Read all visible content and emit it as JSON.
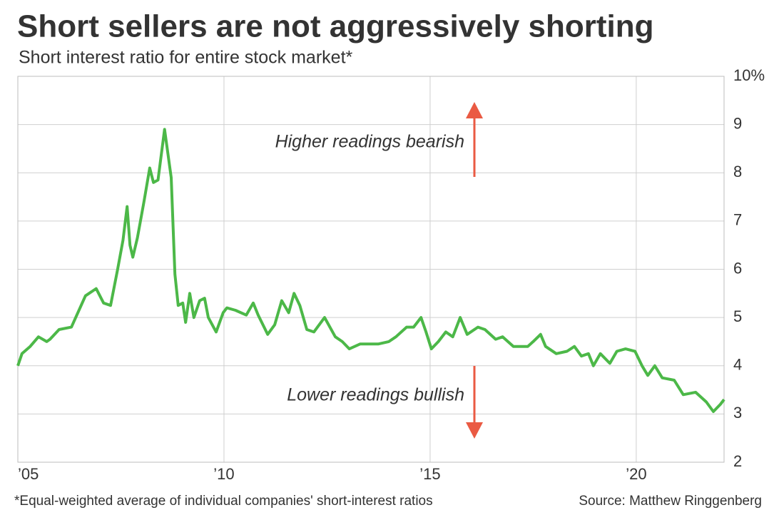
{
  "chart_data": {
    "type": "line",
    "title": "Short sellers are not aggressively shorting",
    "subtitle": "Short interest ratio for entire stock market*",
    "footnote": "*Equal-weighted average of individual companies' short-interest ratios",
    "source": "Source: Matthew Ringgenberg",
    "annotations": [
      "Higher readings bearish",
      "Lower readings bullish"
    ],
    "annotation_color": "#ea5a43",
    "grid": true,
    "xlim": [
      2005,
      2022.13
    ],
    "xticks": [
      {
        "value": 2005,
        "label": "’05"
      },
      {
        "value": 2010,
        "label": "’10"
      },
      {
        "value": 2015,
        "label": "’15"
      },
      {
        "value": 2020,
        "label": "’20"
      }
    ],
    "ylim": [
      2,
      10
    ],
    "yticks": [
      2,
      3,
      4,
      5,
      6,
      7,
      8,
      9,
      {
        "value": 10,
        "label": "10%"
      }
    ],
    "series": [
      {
        "color": "#4cb848",
        "x": [
          2005.0,
          2005.1,
          2005.3,
          2005.5,
          2005.7,
          2005.78,
          2006.0,
          2006.3,
          2006.64,
          2006.9,
          2007.08,
          2007.25,
          2007.42,
          2007.55,
          2007.65,
          2007.72,
          2007.79,
          2007.9,
          2008.06,
          2008.2,
          2008.29,
          2008.4,
          2008.56,
          2008.72,
          2008.81,
          2008.89,
          2009.0,
          2009.07,
          2009.17,
          2009.27,
          2009.41,
          2009.53,
          2009.62,
          2009.81,
          2009.98,
          2010.07,
          2010.28,
          2010.54,
          2010.71,
          2010.83,
          2011.06,
          2011.23,
          2011.4,
          2011.57,
          2011.7,
          2011.84,
          2012.01,
          2012.18,
          2012.44,
          2012.7,
          2012.87,
          2013.04,
          2013.3,
          2013.56,
          2013.74,
          2014.0,
          2014.17,
          2014.43,
          2014.6,
          2014.78,
          2014.9,
          2015.03,
          2015.2,
          2015.38,
          2015.55,
          2015.73,
          2015.9,
          2016.16,
          2016.33,
          2016.59,
          2016.76,
          2017.02,
          2017.37,
          2017.5,
          2017.68,
          2017.8,
          2018.06,
          2018.32,
          2018.5,
          2018.67,
          2018.84,
          2018.96,
          2019.13,
          2019.36,
          2019.53,
          2019.74,
          2019.97,
          2020.14,
          2020.28,
          2020.45,
          2020.63,
          2020.92,
          2021.14,
          2021.44,
          2021.7,
          2021.87,
          2022.04,
          2022.13
        ],
        "values": [
          4.0,
          4.25,
          4.4,
          4.6,
          4.5,
          4.55,
          4.75,
          4.8,
          5.45,
          5.6,
          5.3,
          5.25,
          6.0,
          6.6,
          7.3,
          6.5,
          6.25,
          6.65,
          7.4,
          8.1,
          7.8,
          7.85,
          8.9,
          7.9,
          5.9,
          5.25,
          5.3,
          4.9,
          5.5,
          5.0,
          5.35,
          5.4,
          5.0,
          4.7,
          5.1,
          5.2,
          5.15,
          5.05,
          5.3,
          5.05,
          4.65,
          4.85,
          5.35,
          5.1,
          5.5,
          5.25,
          4.75,
          4.7,
          5.0,
          4.6,
          4.5,
          4.35,
          4.45,
          4.45,
          4.45,
          4.5,
          4.6,
          4.8,
          4.8,
          5.0,
          4.7,
          4.35,
          4.5,
          4.7,
          4.6,
          5.0,
          4.65,
          4.8,
          4.75,
          4.55,
          4.6,
          4.4,
          4.4,
          4.5,
          4.65,
          4.4,
          4.25,
          4.3,
          4.4,
          4.2,
          4.25,
          4.0,
          4.25,
          4.05,
          4.3,
          4.35,
          4.3,
          4.0,
          3.8,
          4.0,
          3.75,
          3.7,
          3.4,
          3.45,
          3.25,
          3.05,
          3.2,
          3.3
        ]
      }
    ]
  }
}
